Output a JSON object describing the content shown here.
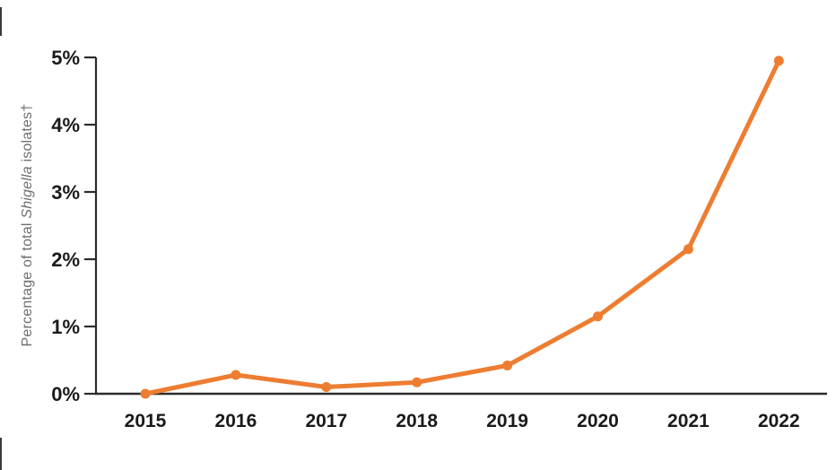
{
  "chart_data": {
    "type": "line",
    "title": "",
    "xlabel": "",
    "ylabel": "Percentage of total Shigella isolates†",
    "ylabel_parts": {
      "prefix": "Percentage of total ",
      "italic": "Shigella",
      "suffix": " isolates†"
    },
    "x_labels": [
      "2015",
      "2016",
      "2017",
      "2018",
      "2019",
      "2020",
      "2021",
      "2022"
    ],
    "values": [
      0.0,
      0.28,
      0.1,
      0.17,
      0.42,
      1.15,
      2.15,
      4.95
    ],
    "y_ticks": [
      {
        "value": 0,
        "label": "0%"
      },
      {
        "value": 1,
        "label": "1%"
      },
      {
        "value": 2,
        "label": "2%"
      },
      {
        "value": 3,
        "label": "3%"
      },
      {
        "value": 4,
        "label": "4%"
      },
      {
        "value": 5,
        "label": "5%"
      }
    ],
    "ylim": [
      0,
      5
    ],
    "grid": false,
    "legend": "none",
    "marker": "circle",
    "colors": {
      "line": "#ED7D31",
      "axis": "#2b2b2b",
      "tick_label": "#1a1a1a",
      "ylabel": "#6e6e6e"
    }
  }
}
